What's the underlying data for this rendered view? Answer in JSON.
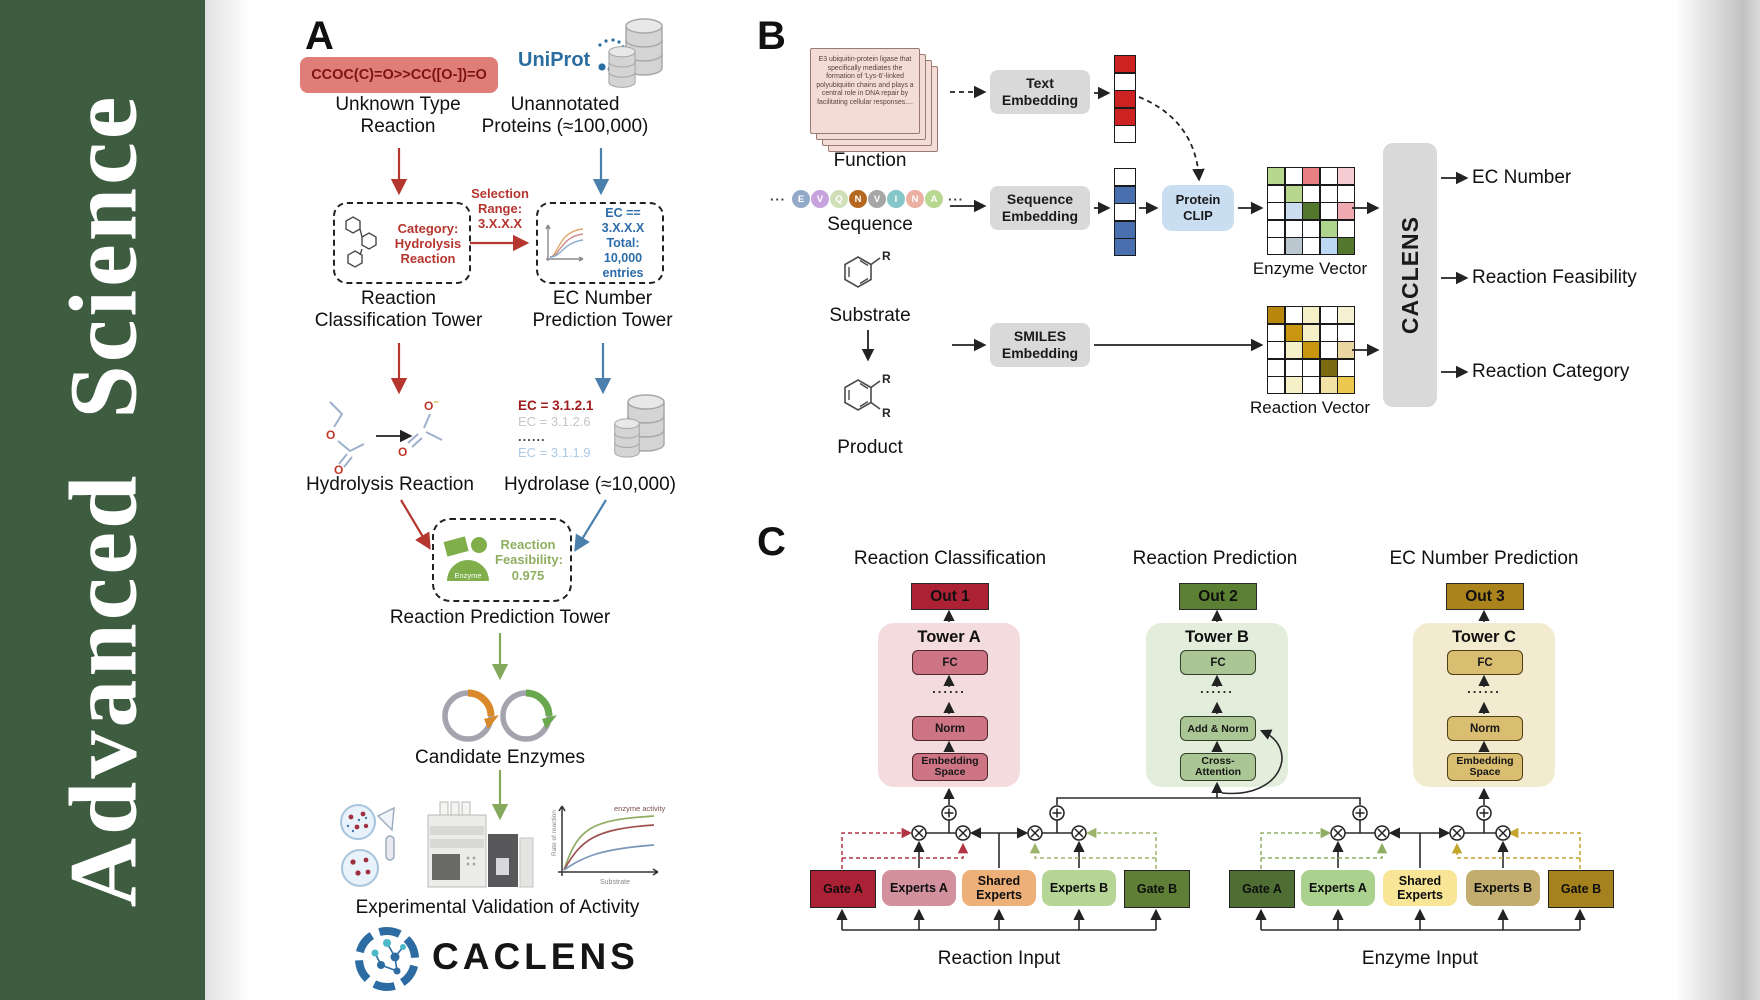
{
  "journal": {
    "title": "Advanced  Science"
  },
  "panelA": {
    "label": "A",
    "smiles": "CCOC(C)=O>>CC([O-])=O",
    "unknown_reaction": "Unknown Type\nReaction",
    "uniprot": "UniProt",
    "unannotated": "Unannotated\nProteins (≈100,000)",
    "selection": "Selection\nRange:\n3.X.X.X",
    "category": "Category:\nHydrolysis\nReaction",
    "ec_filter": "EC == 3.X.X.X\nTotal: 10,000\nentries",
    "tower_classification": "Reaction\nClassification Tower",
    "tower_ec": "EC Number\nPrediction Tower",
    "hydrolysis": "Hydrolysis Reaction",
    "ec_list": [
      {
        "text": "EC = 3.1.2.1",
        "color": "#9e1c1c"
      },
      {
        "text": "EC = 3.1.2.6",
        "color": "#c6c6c6"
      },
      {
        "text": "......",
        "color": "#444444"
      },
      {
        "text": "EC = 3.1.1.9",
        "color": "#abc8e4"
      }
    ],
    "hydrolase": "Hydrolase (≈10,000)",
    "enzyme_badge": "Enzyme",
    "feasibility": "Reaction\nFeasibility:\n0.975",
    "tower_prediction": "Reaction Prediction Tower",
    "candidates": "Candidate Enzymes",
    "mini_chart": {
      "title": "enzyme activity",
      "ylabel": "Rate of reaction",
      "xlabel": "Substrate"
    },
    "validation": "Experimental Validation of Activity",
    "wordmark": "CACLENS"
  },
  "panelB": {
    "label": "B",
    "function_text": "E3 ubiquitin-protein ligase that specifically mediates the formation of 'Lys-6'-linked polyubiquitin chains and plays a central role in DNA repair by facilitating cellular responses....",
    "function_label": "Function",
    "dots_leading": "···",
    "dots_trailing": "···",
    "amino_acids": [
      {
        "text": "E",
        "color": "#93a9c8"
      },
      {
        "text": "V",
        "color": "#c6a3dd"
      },
      {
        "text": "Q",
        "color": "#cfe0b8"
      },
      {
        "text": "N",
        "color": "#b5671f"
      },
      {
        "text": "V",
        "color": "#a6a6a6"
      },
      {
        "text": "I",
        "color": "#85c6c9"
      },
      {
        "text": "N",
        "color": "#eab0a2"
      },
      {
        "text": "A",
        "color": "#b8d78f"
      }
    ],
    "sequence_label": "Sequence",
    "substrate_label": "Substrate",
    "product_label": "Product",
    "r_group": "R",
    "text_embedding": "Text\nEmbedding",
    "sequence_embedding": "Sequence\nEmbedding",
    "smiles_embedding": "SMILES\nEmbedding",
    "protein_clip": "Protein\nCLIP",
    "text_vector": [
      "#cc2222",
      "#ffffff",
      "#cc2222",
      "#cc2222",
      "#ffffff"
    ],
    "sequence_vector": [
      "#ffffff",
      "#4a6fae",
      "#ffffff",
      "#4a6fae",
      "#4a6fae"
    ],
    "enzyme_matrix": [
      "#b7d78f",
      "#ffffff",
      "#e87f82",
      "#ffffff",
      "#f6cdd3",
      "#ffffff",
      "#b7d78f",
      "#ffffff",
      "#ffffff",
      "#ffffff",
      "#ffffff",
      "#cdddf1",
      "#53772c",
      "#ffffff",
      "#f2aab2",
      "#ffffff",
      "#ffffff",
      "#ffffff",
      "#aed58c",
      "#ffffff",
      "#ffffff",
      "#bcc8d0",
      "#ffffff",
      "#bcd8f2",
      "#53772c"
    ],
    "reaction_matrix": [
      "#b8860b",
      "#ffffff",
      "#f6f0c8",
      "#ffffff",
      "#f6f0d2",
      "#ffffff",
      "#c9970f",
      "#f6f0c8",
      "#ffffff",
      "#ffffff",
      "#ffffff",
      "#f6f0c8",
      "#c9970f",
      "#ffffff",
      "#e9d6a0",
      "#ffffff",
      "#ffffff",
      "#ffffff",
      "#7c6a12",
      "#ffffff",
      "#ffffff",
      "#f6f0c8",
      "#ffffff",
      "#f2e2a6",
      "#ecc94e"
    ],
    "enzyme_vector_label": "Enzyme Vector",
    "reaction_vector_label": "Reaction Vector",
    "caclens": "CACLENS",
    "outputs": [
      "EC Number",
      "Reaction Feasibility",
      "Reaction Category"
    ]
  },
  "panelC": {
    "label": "C",
    "columns": [
      {
        "header": "Reaction Classification",
        "out": "Out 1",
        "out_color": "#ad2135",
        "tower": "Tower A",
        "fc": "FC",
        "dots": "......",
        "mid": "Norm",
        "bottom": "Embedding\nSpace"
      },
      {
        "header": "Reaction Prediction",
        "out": "Out 2",
        "out_color": "#5c8033",
        "tower": "Tower B",
        "fc": "FC",
        "dots": "......",
        "mid": "Add & Norm",
        "bottom": "Cross-\nAttention"
      },
      {
        "header": "EC Number Prediction",
        "out": "Out 3",
        "out_color": "#ab831c",
        "tower": "Tower C",
        "fc": "FC",
        "dots": "......",
        "mid": "Norm",
        "bottom": "Embedding\nSpace"
      }
    ],
    "groups": [
      {
        "label": "Reaction Input",
        "boxes": [
          {
            "text": "Gate A",
            "color": "#ab2135"
          },
          {
            "text": "Experts A",
            "color": "#d2919d"
          },
          {
            "text": "Shared\nExperts",
            "color": "#eeb079"
          },
          {
            "text": "Experts B",
            "color": "#b6d697"
          },
          {
            "text": "Gate B",
            "color": "#5e7f35"
          }
        ]
      },
      {
        "label": "Enzyme Input",
        "boxes": [
          {
            "text": "Gate A",
            "color": "#4e6e33"
          },
          {
            "text": "Experts A",
            "color": "#aad18d"
          },
          {
            "text": "Shared\nExperts",
            "color": "#f8e596"
          },
          {
            "text": "Experts B",
            "color": "#c2ac6e"
          },
          {
            "text": "Gate B",
            "color": "#a6821f"
          }
        ]
      }
    ]
  },
  "colors": {
    "sidebar_green": "#3d5c40",
    "red_arrow": "#b5362e",
    "blue_arrow": "#4b80ad",
    "green_arrow": "#84a85c",
    "uniprot_blue": "#2a6da0"
  }
}
